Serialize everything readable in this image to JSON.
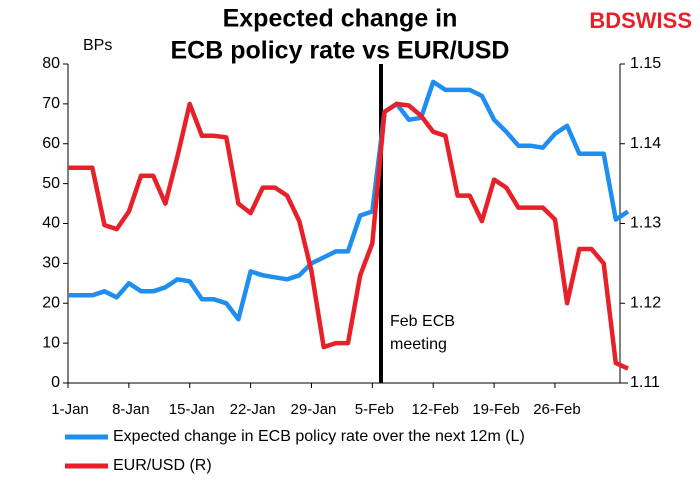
{
  "chart_data": {
    "type": "line",
    "title": [
      "Expected change in",
      "ECB policy rate vs EUR/USD"
    ],
    "logo": "BDSWISS",
    "ylabel": "BPs",
    "annotation": [
      "Feb ECB",
      "meeting"
    ],
    "categories": [
      "1-Jan",
      null,
      null,
      null,
      null,
      "8-Jan",
      null,
      null,
      null,
      null,
      "15-Jan",
      null,
      null,
      null,
      null,
      "22-Jan",
      null,
      null,
      null,
      null,
      "29-Jan",
      null,
      null,
      null,
      null,
      "5-Feb",
      null,
      null,
      null,
      null,
      "12-Feb",
      null,
      null,
      null,
      null,
      "19-Feb",
      null,
      null,
      null,
      null,
      "26-Feb",
      null,
      null,
      null,
      null,
      null,
      null
    ],
    "series": [
      {
        "name": "Expected change in ECB policy rate over the next 12m (L)",
        "color": "#1f8ef1",
        "values": [
          22,
          22,
          22,
          23,
          21.5,
          25,
          23,
          23,
          24,
          26,
          25.5,
          21,
          21,
          20,
          16,
          28,
          27,
          26.5,
          26,
          27,
          30,
          31.5,
          33,
          33,
          42,
          43,
          68,
          70,
          66,
          66.5,
          75.5,
          73.5,
          73.5,
          73.5,
          72,
          66,
          63,
          59.5,
          59.5,
          59,
          62.5,
          64.5,
          57.5,
          57.5,
          57.5,
          41,
          43
        ]
      },
      {
        "name": "EUR/USD (R)",
        "color": "#e8202a",
        "axis": "y2",
        "values": [
          1.137,
          1.137,
          1.137,
          1.1298,
          1.1293,
          1.1315,
          1.136,
          1.136,
          1.1325,
          1.1385,
          1.145,
          1.141,
          1.141,
          1.1408,
          1.1325,
          1.1313,
          1.1345,
          1.1345,
          1.1335,
          1.1303,
          1.124,
          1.1145,
          1.115,
          1.115,
          1.1235,
          1.1275,
          1.144,
          1.145,
          1.1448,
          1.1435,
          1.1415,
          1.141,
          1.1335,
          1.1335,
          1.1303,
          1.1355,
          1.1345,
          1.132,
          1.132,
          1.132,
          1.1305,
          1.12,
          1.1268,
          1.1268,
          1.125,
          1.1125,
          1.1118
        ]
      }
    ],
    "ylim": [
      0,
      80
    ],
    "yticks": [
      0,
      10,
      20,
      30,
      40,
      50,
      60,
      70,
      80
    ],
    "y2lim": [
      1.11,
      1.15
    ],
    "y2ticks": [
      1.11,
      1.12,
      1.13,
      1.14,
      1.15
    ],
    "legend": "bottom",
    "grid": false
  }
}
